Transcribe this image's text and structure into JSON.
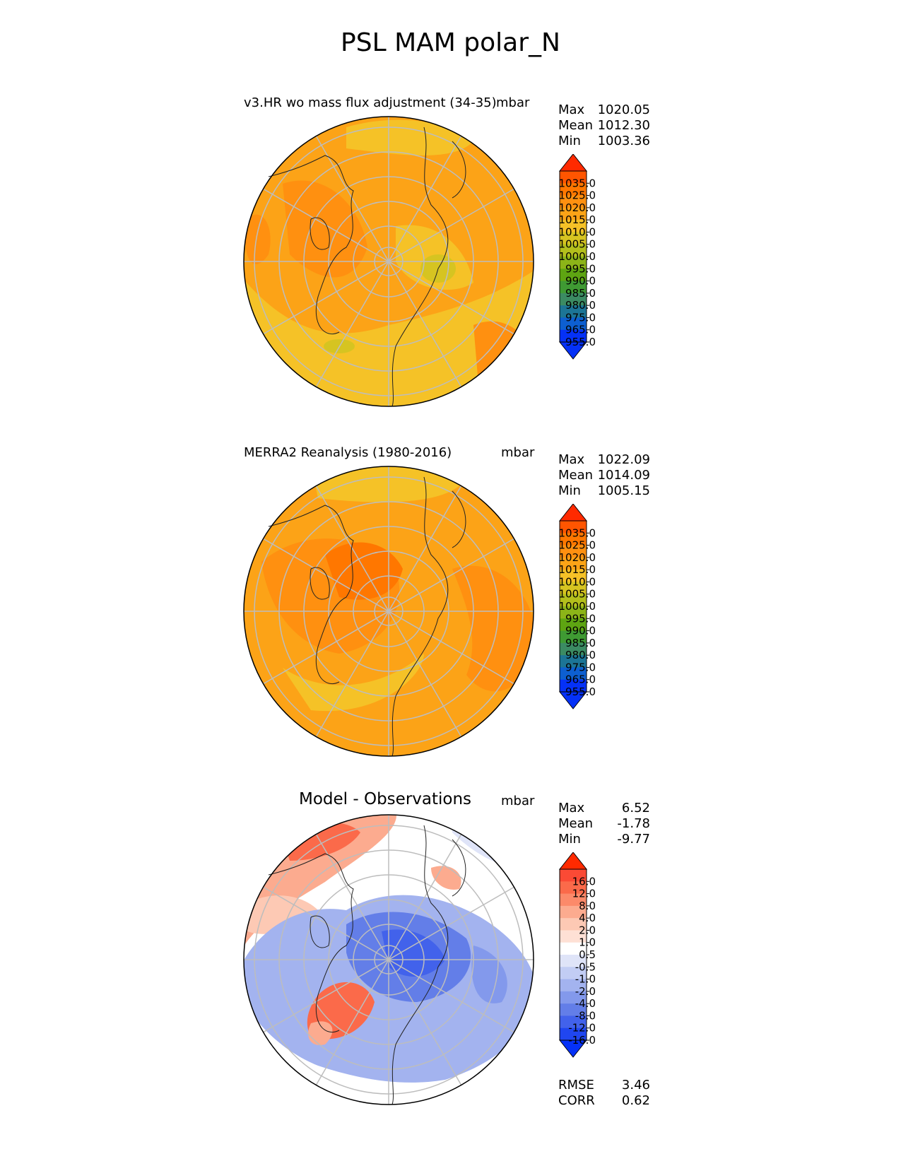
{
  "title": "PSL MAM polar_N",
  "panels": [
    {
      "title": "v3.HR wo mass flux adjustment (34-35)",
      "units": "mbar",
      "stats": [
        {
          "label": "Max",
          "value": "1020.05"
        },
        {
          "label": "Mean",
          "value": "1012.30"
        },
        {
          "label": "Min",
          "value": "1003.36"
        }
      ],
      "colorbar": {
        "ticks": [
          "1035.0",
          "1025.0",
          "1020.0",
          "1015.0",
          "1010.0",
          "1005.0",
          "1000.0",
          "995.0",
          "990.0",
          "985.0",
          "980.0",
          "975.0",
          "965.0",
          "955.0"
        ],
        "colors": [
          "#ff2a00",
          "#ff5500",
          "#ff7700",
          "#ff9010",
          "#fca317",
          "#f5c227",
          "#d6c421",
          "#b3bf1c",
          "#8cb418",
          "#5ea512",
          "#3f9a33",
          "#3b8b63",
          "#1c7596",
          "#0d5fd0",
          "#0531f7",
          "#0531f7"
        ]
      }
    },
    {
      "title": "MERRA2 Reanalysis (1980-2016)",
      "units": "mbar",
      "stats": [
        {
          "label": "Max",
          "value": "1022.09"
        },
        {
          "label": "Mean",
          "value": "1014.09"
        },
        {
          "label": "Min",
          "value": "1005.15"
        }
      ],
      "colorbar": {
        "ticks": [
          "1035.0",
          "1025.0",
          "1020.0",
          "1015.0",
          "1010.0",
          "1005.0",
          "1000.0",
          "995.0",
          "990.0",
          "985.0",
          "980.0",
          "975.0",
          "965.0",
          "955.0"
        ],
        "colors": [
          "#ff2a00",
          "#ff5500",
          "#ff7700",
          "#ff9010",
          "#fca317",
          "#f5c227",
          "#d6c421",
          "#b3bf1c",
          "#8cb418",
          "#5ea512",
          "#3f9a33",
          "#3b8b63",
          "#1c7596",
          "#0d5fd0",
          "#0531f7",
          "#0531f7"
        ]
      }
    },
    {
      "title": "Model - Observations",
      "units": "mbar",
      "stats": [
        {
          "label": "Max",
          "value": "6.52"
        },
        {
          "label": "Mean",
          "value": "-1.78"
        },
        {
          "label": "Min",
          "value": "-9.77"
        }
      ],
      "metrics": [
        {
          "label": "RMSE",
          "value": "3.46"
        },
        {
          "label": "CORR",
          "value": "0.62"
        }
      ],
      "colorbar": {
        "ticks": [
          "16.0",
          "12.0",
          "8.0",
          "4.0",
          "2.0",
          "1.0",
          "0.5",
          "-0.5",
          "-1.0",
          "-2.0",
          "-4.0",
          "-8.0",
          "-12.0",
          "-16.0"
        ],
        "colors": [
          "#ff2a00",
          "#fb4a35",
          "#fb6a4a",
          "#fc8a6a",
          "#fcab8f",
          "#fdc9b4",
          "#fee0d5",
          "#ffffff",
          "#dfe4f8",
          "#c2cdf4",
          "#a3b3ef",
          "#8399ec",
          "#637ee8",
          "#4262eb",
          "#2046f0",
          "#0531f7"
        ]
      }
    }
  ]
}
